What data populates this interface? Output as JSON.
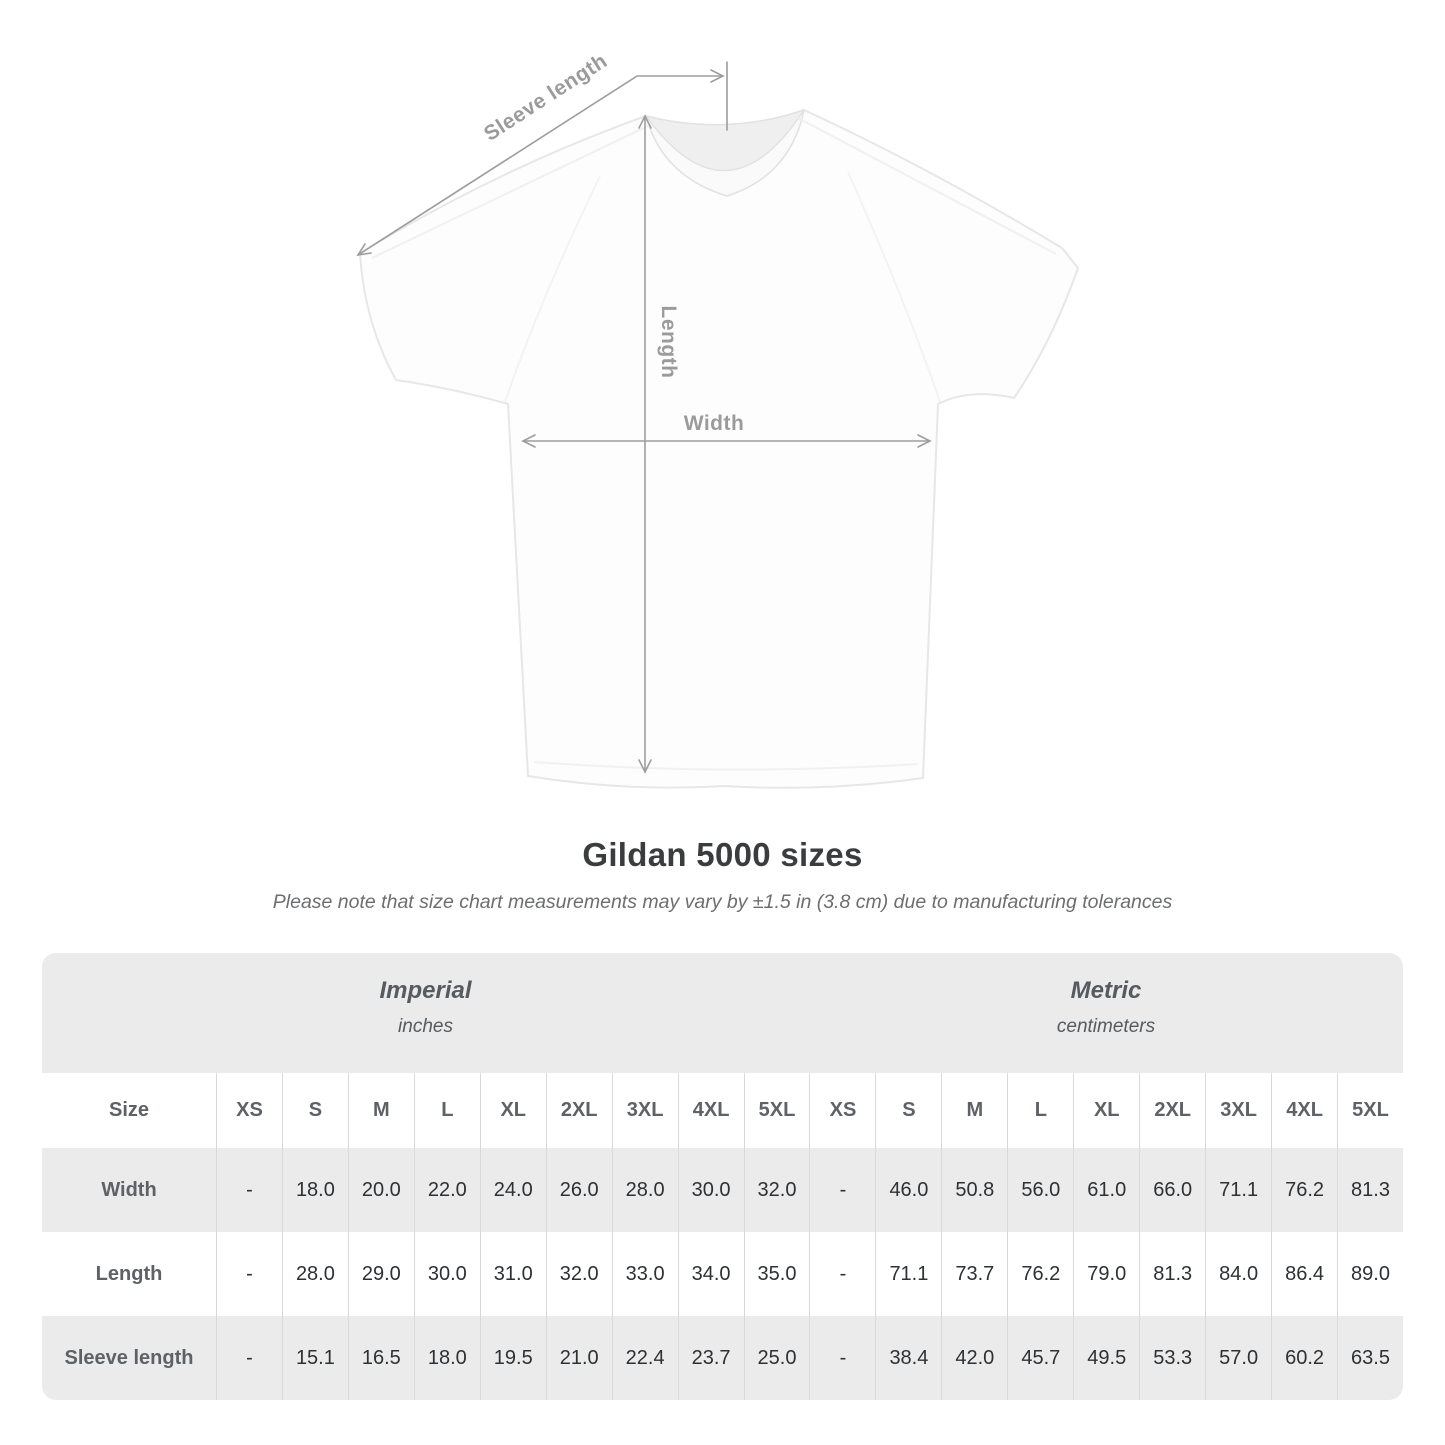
{
  "page": {
    "title": "Gildan 5000 sizes",
    "subtitle": "Please note that size chart measurements may vary by ±1.5 in (3.8 cm) due to manufacturing tolerances"
  },
  "diagram": {
    "labels": {
      "sleeve_length": "Sleeve length",
      "length": "Length",
      "width": "Width"
    }
  },
  "table": {
    "groups": [
      {
        "label": "Imperial",
        "unit": "inches"
      },
      {
        "label": "Metric",
        "unit": "centimeters"
      }
    ],
    "corner_header": "Size",
    "sizes": [
      "XS",
      "S",
      "M",
      "L",
      "XL",
      "2XL",
      "3XL",
      "4XL",
      "5XL"
    ],
    "rows": [
      {
        "label": "Width",
        "imperial": [
          "-",
          "18.0",
          "20.0",
          "22.0",
          "24.0",
          "26.0",
          "28.0",
          "30.0",
          "32.0"
        ],
        "metric": [
          "-",
          "46.0",
          "50.8",
          "56.0",
          "61.0",
          "66.0",
          "71.1",
          "76.2",
          "81.3"
        ]
      },
      {
        "label": "Length",
        "imperial": [
          "-",
          "28.0",
          "29.0",
          "30.0",
          "31.0",
          "32.0",
          "33.0",
          "34.0",
          "35.0"
        ],
        "metric": [
          "-",
          "71.1",
          "73.7",
          "76.2",
          "79.0",
          "81.3",
          "84.0",
          "86.4",
          "89.0"
        ]
      },
      {
        "label": "Sleeve length",
        "imperial": [
          "-",
          "15.1",
          "16.5",
          "18.0",
          "19.5",
          "21.0",
          "22.4",
          "23.7",
          "25.0"
        ],
        "metric": [
          "-",
          "38.4",
          "42.0",
          "45.7",
          "49.5",
          "53.3",
          "57.0",
          "60.2",
          "63.5"
        ]
      }
    ]
  },
  "colors": {
    "stripe_gray": "#ebebeb",
    "grid_line": "#d9d9d9",
    "heading_text": "#3a3c3e",
    "subtitle_text": "#6d6e70",
    "table_label_text": "#5e6266",
    "value_text": "#2e3134",
    "diagram_line": "#9d9d9d",
    "diagram_label": "#9b9b9b"
  }
}
